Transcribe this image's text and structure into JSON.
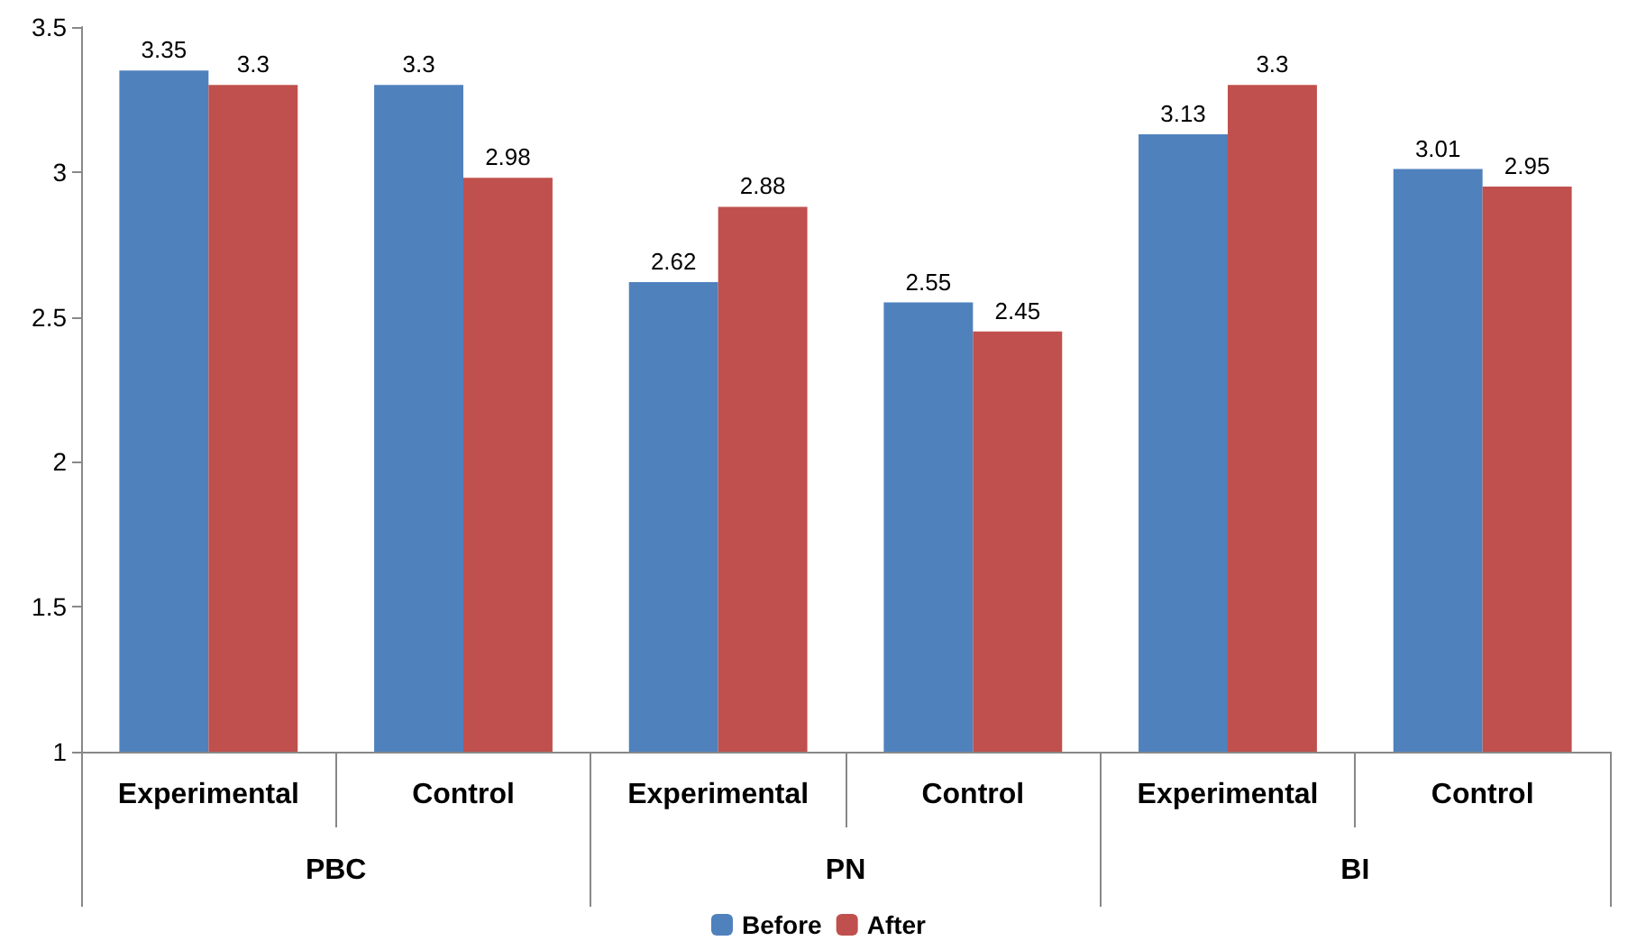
{
  "chart_data": {
    "type": "bar",
    "categories": [
      "Experimental",
      "Control",
      "Experimental",
      "Control",
      "Experimental",
      "Control"
    ],
    "annotations": [
      "PBC",
      "PN",
      "BI"
    ],
    "series": [
      {
        "name": "Before",
        "color": "#4f81bd",
        "values": [
          3.35,
          3.3,
          2.62,
          2.55,
          3.13,
          3.01
        ]
      },
      {
        "name": "After",
        "color": "#c0504d",
        "values": [
          3.3,
          2.98,
          2.88,
          2.45,
          3.3,
          2.95
        ]
      }
    ],
    "ylim": [
      1,
      3.5
    ],
    "yticks": [
      1,
      1.5,
      2,
      2.5,
      3,
      3.5
    ],
    "data_labels": true,
    "grid": false,
    "legend": "bottom"
  }
}
